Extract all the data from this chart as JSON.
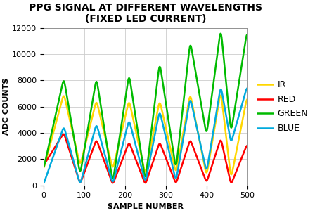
{
  "title_line1": "PPG SIGNAL AT DIFFERENT WAVELENGTHS",
  "title_line2": "(FIXED LED CURRENT)",
  "xlabel": "SAMPLE NUMBER",
  "ylabel": "ADC COUNTS",
  "xlim": [
    0,
    500
  ],
  "ylim": [
    0,
    12000
  ],
  "yticks": [
    0,
    2000,
    4000,
    6000,
    8000,
    10000,
    12000
  ],
  "xticks": [
    0,
    100,
    200,
    300,
    400,
    500
  ],
  "legend": [
    "IR",
    "RED",
    "GREEN",
    "BLUE"
  ],
  "colors": {
    "IR": "#FFD700",
    "RED": "#FF0000",
    "GREEN": "#00BB00",
    "BLUE": "#00AADD"
  },
  "background_color": "#FFFFFF",
  "grid_color": "#CCCCCC",
  "title_fontsize": 10,
  "axis_label_fontsize": 8,
  "tick_fontsize": 8,
  "legend_fontsize": 9,
  "linewidth": 1.8
}
